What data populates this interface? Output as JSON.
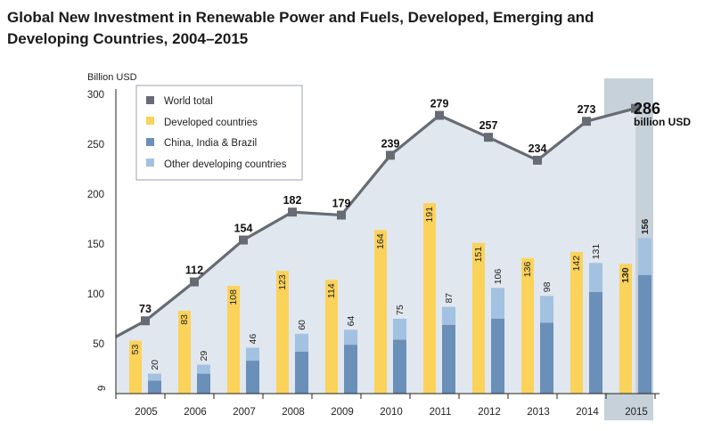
{
  "title": "Global New Investment in Renewable Power and Fuels, Developed, Emerging and Developing Countries, 2004–2015",
  "colors": {
    "world_total": "#666b74",
    "developed": "#fbd25a",
    "china_india_brazil": "#6a8fb8",
    "other_developing": "#a3c1e0",
    "area_fill": "#e1e7ee",
    "highlight": "#c7d1da"
  },
  "chart_data": {
    "type": "bar",
    "ylabel": "Billion USD",
    "ylim": [
      0,
      300
    ],
    "yticks": [
      9,
      50,
      100,
      150,
      200,
      250,
      300
    ],
    "categories": [
      "2005",
      "2006",
      "2007",
      "2008",
      "2009",
      "2010",
      "2011",
      "2012",
      "2013",
      "2014",
      "2015"
    ],
    "series": [
      {
        "name": "World total",
        "type": "line",
        "values": [
          73,
          112,
          154,
          182,
          179,
          239,
          279,
          257,
          234,
          273,
          286
        ]
      },
      {
        "name": "Developed countries",
        "values": [
          53,
          83,
          108,
          123,
          114,
          164,
          191,
          151,
          136,
          142,
          130
        ]
      },
      {
        "name": "China, India & Brazil",
        "values": [
          13,
          20,
          33,
          42,
          49,
          54,
          69,
          75,
          71,
          102,
          119
        ]
      },
      {
        "name": "Other developing countries",
        "values": [
          7,
          9,
          13,
          18,
          15,
          21,
          18,
          31,
          27,
          29,
          37
        ]
      }
    ],
    "developing_total_labels": [
      "20",
      "29",
      "46",
      "60",
      "64",
      "75",
      "87",
      "106",
      "98",
      "131",
      "156"
    ],
    "highlighted_category": "2015",
    "callout": {
      "value": "286",
      "unit": "billion USD"
    },
    "legend_position": "top-left",
    "grid": false
  }
}
